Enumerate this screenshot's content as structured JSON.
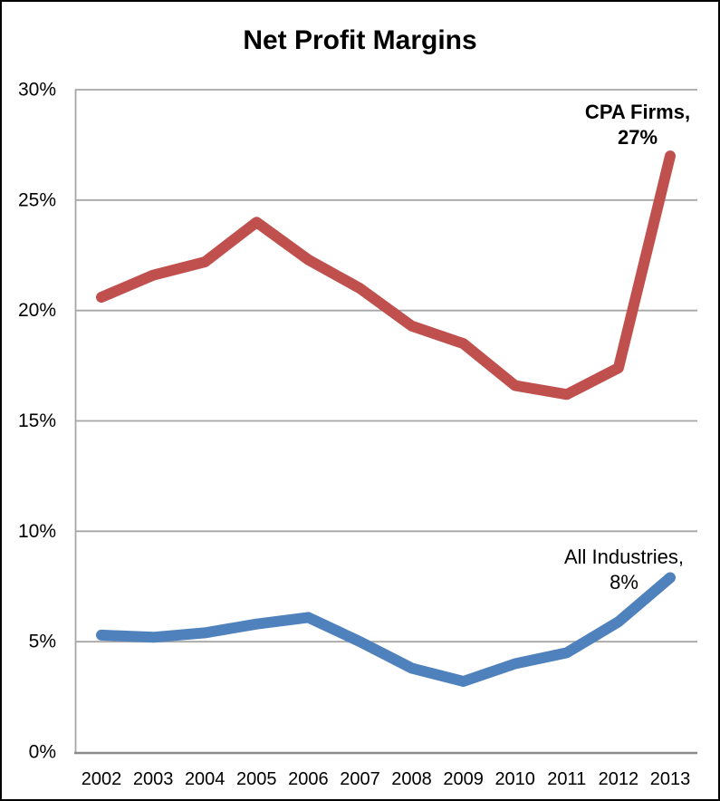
{
  "chart_data": {
    "type": "line",
    "title": "Net Profit Margins",
    "categories": [
      "2002",
      "2003",
      "2004",
      "2005",
      "2006",
      "2007",
      "2008",
      "2009",
      "2010",
      "2011",
      "2012",
      "2013"
    ],
    "series": [
      {
        "name": "CPA Firms",
        "color": "#C0504D",
        "values": [
          20.6,
          21.6,
          22.2,
          24.0,
          22.3,
          21.0,
          19.3,
          18.5,
          16.6,
          16.2,
          17.4,
          27.0
        ],
        "end_label": {
          "line1": "CPA Firms,",
          "line2": "27%"
        }
      },
      {
        "name": "All Industries",
        "color": "#4F81BD",
        "values": [
          5.3,
          5.2,
          5.4,
          5.8,
          6.1,
          5.0,
          3.8,
          3.2,
          4.0,
          4.5,
          5.9,
          7.9
        ],
        "end_label": {
          "line1": "All Industries,",
          "line2": "8%"
        }
      }
    ],
    "ylim": [
      0,
      30
    ],
    "ytick_step": 5,
    "ytick_labels": [
      "0%",
      "5%",
      "10%",
      "15%",
      "20%",
      "25%",
      "30%"
    ],
    "grid": "horizontal",
    "legend_position": "none",
    "line_width": 12,
    "colors": {
      "grid": "#A6A6A6",
      "axis": "#8C8C8C",
      "text": "#000000",
      "background": "#FFFFFF",
      "frame_border": "#000000"
    }
  }
}
